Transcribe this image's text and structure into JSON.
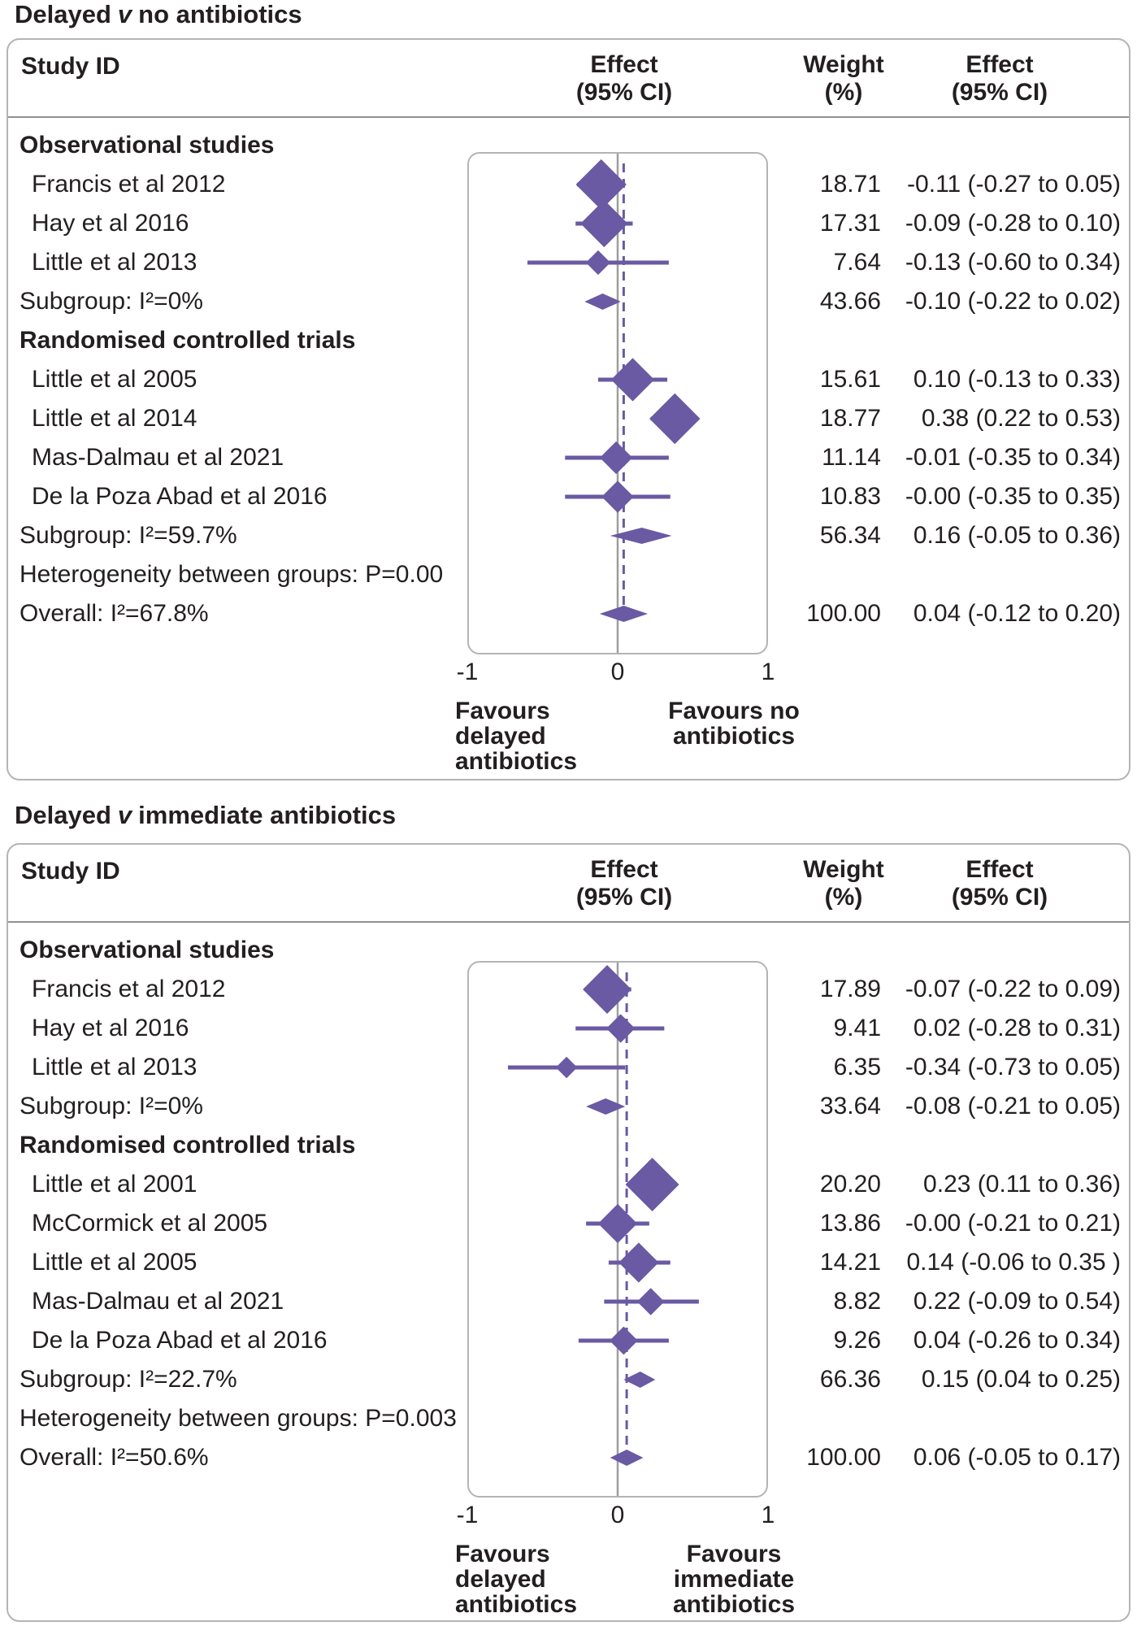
{
  "colors": {
    "diamond": "#6a59a3",
    "ci_line": "#6a59a3",
    "dashed_ref_line": "#6a59a3",
    "zero_line": "#9c9ea0",
    "frame_border": "#b4b4b6",
    "text": "#231f20"
  },
  "chart_data": [
    {
      "type": "forest",
      "title": {
        "prefix": "Delayed",
        "versus": "v",
        "suffix": "no antibiotics"
      },
      "header": {
        "study": "Study ID",
        "effect_plot_l1": "Effect",
        "effect_plot_l2": "(95% CI)",
        "weight_l1": "Weight",
        "weight_l2": "(%)",
        "effect_txt_l1": "Effect",
        "effect_txt_l2": "(95% CI)"
      },
      "xlim": [
        -1,
        1
      ],
      "ticks": [
        "-1",
        "0",
        "1"
      ],
      "zero": 0,
      "overall_ref_line": 0.04,
      "favours_left": [
        "Favours",
        "delayed",
        "antibiotics"
      ],
      "favours_right": [
        "Favours no",
        "antibiotics"
      ],
      "rows": [
        {
          "kind": "group",
          "label": "Observational studies"
        },
        {
          "kind": "study",
          "label": "Francis et al 2012",
          "est": -0.11,
          "lo": -0.27,
          "hi": 0.05,
          "weight": 18.71,
          "weight_text": "18.71",
          "effect_text": "-0.11 (-0.27 to 0.05)"
        },
        {
          "kind": "study",
          "label": "Hay et al 2016",
          "est": -0.09,
          "lo": -0.28,
          "hi": 0.1,
          "weight": 17.31,
          "weight_text": "17.31",
          "effect_text": "-0.09 (-0.28 to 0.10)"
        },
        {
          "kind": "study",
          "label": "Little et al 2013",
          "est": -0.13,
          "lo": -0.6,
          "hi": 0.34,
          "weight": 7.64,
          "weight_text": "7.64",
          "effect_text": "-0.13 (-0.60 to 0.34)"
        },
        {
          "kind": "subgroup",
          "label": "Subgroup: I²=0%",
          "est": -0.1,
          "lo": -0.22,
          "hi": 0.02,
          "weight_text": "43.66",
          "effect_text": "-0.10 (-0.22 to 0.02)"
        },
        {
          "kind": "group",
          "label": "Randomised controlled trials"
        },
        {
          "kind": "study",
          "label": "Little et al 2005",
          "est": 0.1,
          "lo": -0.13,
          "hi": 0.33,
          "weight": 15.61,
          "weight_text": "15.61",
          "effect_text": "0.10 (-0.13 to 0.33)"
        },
        {
          "kind": "study",
          "label": "Little et al 2014",
          "est": 0.38,
          "lo": 0.22,
          "hi": 0.53,
          "weight": 18.77,
          "weight_text": "18.77",
          "effect_text": "0.38 (0.22 to 0.53)"
        },
        {
          "kind": "study",
          "label": "Mas-Dalmau et al 2021",
          "est": -0.01,
          "lo": -0.35,
          "hi": 0.34,
          "weight": 11.14,
          "weight_text": "11.14",
          "effect_text": "-0.01 (-0.35 to 0.34)"
        },
        {
          "kind": "study",
          "label": "De la Poza Abad et al 2016",
          "est": 0,
          "lo": -0.35,
          "hi": 0.35,
          "weight": 10.83,
          "weight_text": "10.83",
          "effect_text": "-0.00 (-0.35 to 0.35)"
        },
        {
          "kind": "subgroup",
          "label": "Subgroup: I²=59.7%",
          "est": 0.16,
          "lo": -0.05,
          "hi": 0.36,
          "weight_text": "56.34",
          "effect_text": "0.16 (-0.05 to 0.36)"
        },
        {
          "kind": "text",
          "label": "Heterogeneity between groups: P=0.00"
        },
        {
          "kind": "overall",
          "label": "Overall: I²=67.8%",
          "est": 0.04,
          "lo": -0.12,
          "hi": 0.2,
          "weight_text": "100.00",
          "effect_text": "0.04 (-0.12 to 0.20)"
        }
      ]
    },
    {
      "type": "forest",
      "title": {
        "prefix": "Delayed",
        "versus": "v",
        "suffix": "immediate antibiotics"
      },
      "header": {
        "study": "Study ID",
        "effect_plot_l1": "Effect",
        "effect_plot_l2": "(95% CI)",
        "weight_l1": "Weight",
        "weight_l2": "(%)",
        "effect_txt_l1": "Effect",
        "effect_txt_l2": "(95% CI)"
      },
      "xlim": [
        -1,
        1
      ],
      "ticks": [
        "-1",
        "0",
        "1"
      ],
      "zero": 0,
      "overall_ref_line": 0.06,
      "favours_left": [
        "Favours",
        "delayed",
        "antibiotics"
      ],
      "favours_right": [
        "Favours",
        "immediate",
        "antibiotics"
      ],
      "rows": [
        {
          "kind": "group",
          "label": "Observational studies"
        },
        {
          "kind": "study",
          "label": "Francis et al 2012",
          "est": -0.07,
          "lo": -0.22,
          "hi": 0.09,
          "weight": 17.89,
          "weight_text": "17.89",
          "effect_text": "-0.07 (-0.22 to 0.09)"
        },
        {
          "kind": "study",
          "label": "Hay et al 2016",
          "est": 0.02,
          "lo": -0.28,
          "hi": 0.31,
          "weight": 9.41,
          "weight_text": "9.41",
          "effect_text": "0.02 (-0.28 to 0.31)"
        },
        {
          "kind": "study",
          "label": "Little et al 2013",
          "est": -0.34,
          "lo": -0.73,
          "hi": 0.05,
          "weight": 6.35,
          "weight_text": "6.35",
          "effect_text": "-0.34 (-0.73 to 0.05)"
        },
        {
          "kind": "subgroup",
          "label": "Subgroup: I²=0%",
          "est": -0.08,
          "lo": -0.21,
          "hi": 0.05,
          "weight_text": "33.64",
          "effect_text": "-0.08 (-0.21 to 0.05)"
        },
        {
          "kind": "group",
          "label": "Randomised controlled trials"
        },
        {
          "kind": "study",
          "label": "Little et al 2001",
          "est": 0.23,
          "lo": 0.11,
          "hi": 0.36,
          "weight": 20.2,
          "weight_text": "20.20",
          "effect_text": "0.23 (0.11 to 0.36)"
        },
        {
          "kind": "study",
          "label": "McCormick et al 2005",
          "est": 0,
          "lo": -0.21,
          "hi": 0.21,
          "weight": 13.86,
          "weight_text": "13.86",
          "effect_text": "-0.00 (-0.21 to 0.21)"
        },
        {
          "kind": "study",
          "label": "Little et al 2005",
          "est": 0.14,
          "lo": -0.06,
          "hi": 0.35,
          "weight": 14.21,
          "weight_text": "14.21",
          "effect_text": "0.14 (-0.06 to 0.35 )"
        },
        {
          "kind": "study",
          "label": "Mas-Dalmau et al 2021",
          "est": 0.22,
          "lo": -0.09,
          "hi": 0.54,
          "weight": 8.82,
          "weight_text": "8.82",
          "effect_text": "0.22 (-0.09 to 0.54)"
        },
        {
          "kind": "study",
          "label": "De la Poza Abad et al 2016",
          "est": 0.04,
          "lo": -0.26,
          "hi": 0.34,
          "weight": 9.26,
          "weight_text": "9.26",
          "effect_text": "0.04 (-0.26 to 0.34)"
        },
        {
          "kind": "subgroup",
          "label": "Subgroup: I²=22.7%",
          "est": 0.15,
          "lo": 0.04,
          "hi": 0.25,
          "weight_text": "66.36",
          "effect_text": "0.15 (0.04 to 0.25)"
        },
        {
          "kind": "text",
          "label": "Heterogeneity between groups: P=0.003"
        },
        {
          "kind": "overall",
          "label": "Overall: I²=50.6%",
          "est": 0.06,
          "lo": -0.05,
          "hi": 0.17,
          "weight_text": "100.00",
          "effect_text": "0.06 (-0.05 to 0.17)"
        }
      ]
    }
  ]
}
